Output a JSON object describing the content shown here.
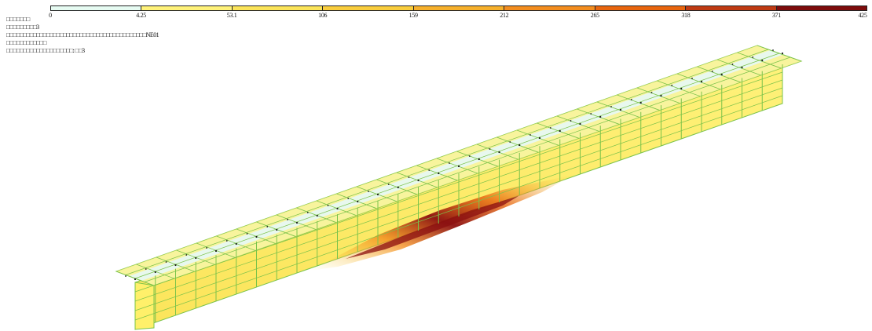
{
  "legend": {
    "labels": [
      "0",
      "4.25",
      "53.1",
      "106",
      "159",
      "212",
      "265",
      "318",
      "371",
      "425"
    ],
    "colors": [
      "#e6fbf2",
      "#fff27a",
      "#fbe45a",
      "#f9cd3d",
      "#f6b02c",
      "#f38d1f",
      "#e8650e",
      "#bf3a13",
      "#7d0c0c"
    ]
  },
  "info": {
    "lines": [
      "□□□□□□□",
      "□□□□□□□□□3",
      "□□□□□□□□□□□□□□□□□□□□□□□□□□□□□□□□□□□□□□□□□□NE01",
      "□□□□□□□□□□□□",
      "□□□□□□□□□□□□□□□□□□□□: □□3"
    ]
  },
  "model": {
    "mesh_color": "#7bc34a",
    "flange_color": "#e8f8ee",
    "web_color": "#fff06a",
    "hot_color": "#8b0f0f"
  }
}
